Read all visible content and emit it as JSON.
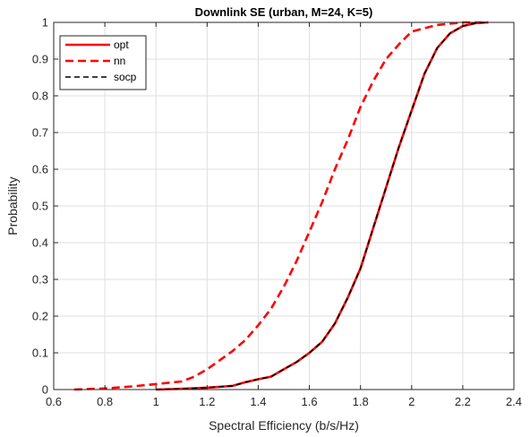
{
  "chart_data": {
    "type": "line",
    "title": "Downlink SE (urban, M=24, K=5)",
    "xlabel": "Spectral Efficiency (b/s/Hz)",
    "ylabel": "Probability",
    "xlim": [
      0.6,
      2.4
    ],
    "ylim": [
      0,
      1
    ],
    "xticks": [
      0.6,
      0.8,
      1,
      1.2,
      1.4,
      1.6,
      1.8,
      2,
      2.2,
      2.4
    ],
    "xtick_labels": [
      "0.6",
      "0.8",
      "1",
      "1.2",
      "1.4",
      "1.6",
      "1.8",
      "2",
      "2.2",
      "2.4"
    ],
    "yticks": [
      0,
      0.1,
      0.2,
      0.3,
      0.4,
      0.5,
      0.6,
      0.7,
      0.8,
      0.9,
      1
    ],
    "ytick_labels": [
      "0",
      "0.1",
      "0.2",
      "0.3",
      "0.4",
      "0.5",
      "0.6",
      "0.7",
      "0.8",
      "0.9",
      "1"
    ],
    "grid": true,
    "legend_position": "top-left",
    "series": [
      {
        "name": "opt",
        "color": "#ff0000",
        "style": "solid",
        "x": [
          1.0,
          1.1,
          1.2,
          1.3,
          1.35,
          1.4,
          1.45,
          1.5,
          1.55,
          1.6,
          1.65,
          1.7,
          1.75,
          1.8,
          1.85,
          1.9,
          1.95,
          2.0,
          2.05,
          2.1,
          2.15,
          2.2,
          2.25,
          2.3
        ],
        "y": [
          0.0,
          0.002,
          0.005,
          0.01,
          0.02,
          0.028,
          0.035,
          0.055,
          0.075,
          0.1,
          0.13,
          0.18,
          0.25,
          0.33,
          0.44,
          0.55,
          0.66,
          0.76,
          0.86,
          0.93,
          0.97,
          0.99,
          0.998,
          1.0
        ]
      },
      {
        "name": "nn",
        "color": "#ff0000",
        "style": "dashed",
        "x": [
          0.68,
          0.8,
          0.9,
          1.0,
          1.1,
          1.15,
          1.2,
          1.25,
          1.3,
          1.35,
          1.4,
          1.45,
          1.5,
          1.55,
          1.6,
          1.65,
          1.7,
          1.75,
          1.8,
          1.85,
          1.9,
          1.95,
          2.0,
          2.1,
          2.2,
          2.3
        ],
        "y": [
          0.0,
          0.003,
          0.008,
          0.015,
          0.022,
          0.035,
          0.055,
          0.08,
          0.105,
          0.135,
          0.175,
          0.22,
          0.28,
          0.35,
          0.43,
          0.51,
          0.6,
          0.68,
          0.77,
          0.84,
          0.9,
          0.94,
          0.975,
          0.993,
          1.0,
          1.0
        ]
      },
      {
        "name": "socp",
        "color": "#000000",
        "style": "dashed",
        "x": [
          1.0,
          1.1,
          1.2,
          1.3,
          1.35,
          1.4,
          1.45,
          1.5,
          1.55,
          1.6,
          1.65,
          1.7,
          1.75,
          1.8,
          1.85,
          1.9,
          1.95,
          2.0,
          2.05,
          2.1,
          2.15,
          2.2,
          2.25,
          2.3
        ],
        "y": [
          0.0,
          0.002,
          0.005,
          0.01,
          0.02,
          0.028,
          0.035,
          0.055,
          0.075,
          0.1,
          0.13,
          0.18,
          0.25,
          0.33,
          0.44,
          0.55,
          0.66,
          0.76,
          0.86,
          0.93,
          0.97,
          0.99,
          0.998,
          1.0
        ]
      }
    ]
  }
}
